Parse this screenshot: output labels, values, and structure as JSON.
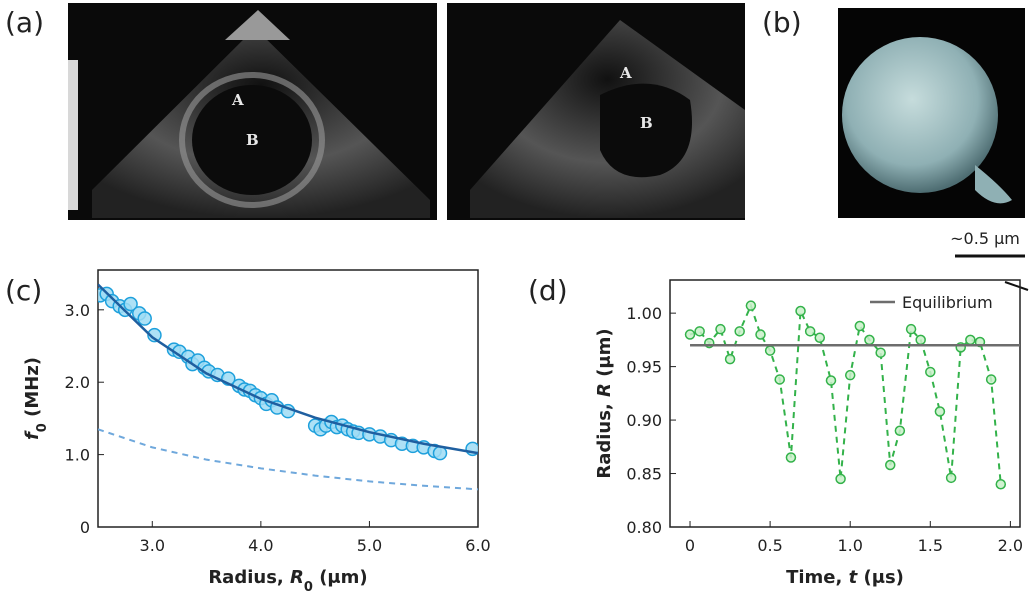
{
  "panel_labels": [
    "(a)",
    "(b)",
    "(c)",
    "(d)"
  ],
  "image_labels": [
    "A",
    "B",
    "A",
    "B"
  ],
  "scale_bar": "~0.5 μm",
  "chart_data": [
    {
      "type": "scatter",
      "xlabel": [
        "Radius, ",
        "R",
        "0",
        " (μm)"
      ],
      "ylabel": [
        "f",
        "0",
        " (MHz)"
      ],
      "xlim": [
        2.5,
        6.0
      ],
      "ylim": [
        0,
        3.55
      ],
      "xticks": [
        {
          "value": 3,
          "label": "3.0"
        },
        {
          "value": 4,
          "label": "4.0"
        },
        {
          "value": 5,
          "label": "5.0"
        },
        {
          "value": 6,
          "label": "6.0"
        }
      ],
      "yticks": [
        0,
        {
          "value": 1,
          "label": "1.0"
        },
        {
          "value": 2,
          "label": "2.0"
        },
        {
          "value": 3,
          "label": "3.0"
        }
      ],
      "grid": false,
      "series": [
        {
          "mode": "markers",
          "color": "#1ea0dc",
          "x": [
            2.52,
            2.58,
            2.63,
            2.7,
            2.75,
            2.8,
            2.88,
            2.93,
            3.02,
            3.2,
            3.25,
            3.33,
            3.37,
            3.42,
            3.48,
            3.52,
            3.6,
            3.7,
            3.8,
            3.85,
            3.9,
            3.95,
            4.0,
            4.05,
            4.1,
            4.15,
            4.25,
            4.5,
            4.55,
            4.6,
            4.65,
            4.7,
            4.75,
            4.8,
            4.85,
            4.9,
            5.0,
            5.1,
            5.2,
            5.3,
            5.4,
            5.5,
            5.6,
            5.65,
            5.95
          ],
          "values": [
            3.2,
            3.22,
            3.12,
            3.05,
            3.0,
            3.08,
            2.95,
            2.88,
            2.65,
            2.45,
            2.42,
            2.35,
            2.25,
            2.3,
            2.2,
            2.15,
            2.1,
            2.05,
            1.95,
            1.9,
            1.88,
            1.82,
            1.78,
            1.7,
            1.75,
            1.65,
            1.6,
            1.4,
            1.35,
            1.4,
            1.45,
            1.38,
            1.4,
            1.35,
            1.32,
            1.3,
            1.28,
            1.25,
            1.2,
            1.15,
            1.12,
            1.1,
            1.05,
            1.02,
            1.08
          ]
        },
        {
          "mode": "line",
          "color": "#1f5fa0",
          "x": [
            2.5,
            3.0,
            3.5,
            4.0,
            4.5,
            5.0,
            5.5,
            6.0
          ],
          "values": [
            3.35,
            2.62,
            2.12,
            1.77,
            1.51,
            1.31,
            1.15,
            1.02
          ]
        },
        {
          "mode": "dashed",
          "color": "#6fa8dc",
          "x": [
            2.5,
            3.0,
            3.5,
            4.0,
            4.5,
            5.0,
            5.5,
            6.0
          ],
          "values": [
            1.35,
            1.1,
            0.93,
            0.81,
            0.71,
            0.63,
            0.57,
            0.52
          ]
        }
      ]
    },
    {
      "type": "scatter",
      "xlabel": [
        "Time, ",
        "t",
        " (μs)"
      ],
      "ylabel": [
        "Radius, ",
        "R",
        " (μm)"
      ],
      "xlim": [
        -0.125,
        2.06
      ],
      "ylim": [
        0.8,
        1.031
      ],
      "xticks": [
        0,
        0.5,
        {
          "value": 1,
          "label": "1.0"
        },
        1.5,
        {
          "value": 2,
          "label": "2.0"
        }
      ],
      "yticks": [
        {
          "value": 0.8,
          "label": "0.80"
        },
        0.85,
        {
          "value": 0.9,
          "label": "0.90"
        },
        0.95,
        {
          "value": 1,
          "label": "1.00"
        }
      ],
      "grid": false,
      "legend": "upper right",
      "series": [
        {
          "mode": "markers+dashed",
          "color": "#33b24a",
          "x": [
            0,
            0.06,
            0.12,
            0.19,
            0.25,
            0.31,
            0.38,
            0.44,
            0.5,
            0.56,
            0.63,
            0.69,
            0.75,
            0.81,
            0.88,
            0.94,
            1.0,
            1.06,
            1.12,
            1.19,
            1.25,
            1.31,
            1.38,
            1.44,
            1.5,
            1.56,
            1.63,
            1.69,
            1.75,
            1.81,
            1.88,
            1.94
          ],
          "values": [
            0.98,
            0.983,
            0.972,
            0.985,
            0.957,
            0.983,
            1.007,
            0.98,
            0.965,
            0.938,
            0.865,
            1.002,
            0.983,
            0.977,
            0.937,
            0.845,
            0.942,
            0.988,
            0.975,
            0.963,
            0.858,
            0.89,
            0.985,
            0.975,
            0.945,
            0.908,
            0.846,
            0.968,
            0.975,
            0.973,
            0.938,
            0.84
          ]
        },
        {
          "name": "Equilibrium",
          "mode": "line",
          "color": "#6d6d6d",
          "x": [
            0,
            2.06
          ],
          "values": [
            0.97,
            0.97
          ]
        }
      ]
    }
  ]
}
